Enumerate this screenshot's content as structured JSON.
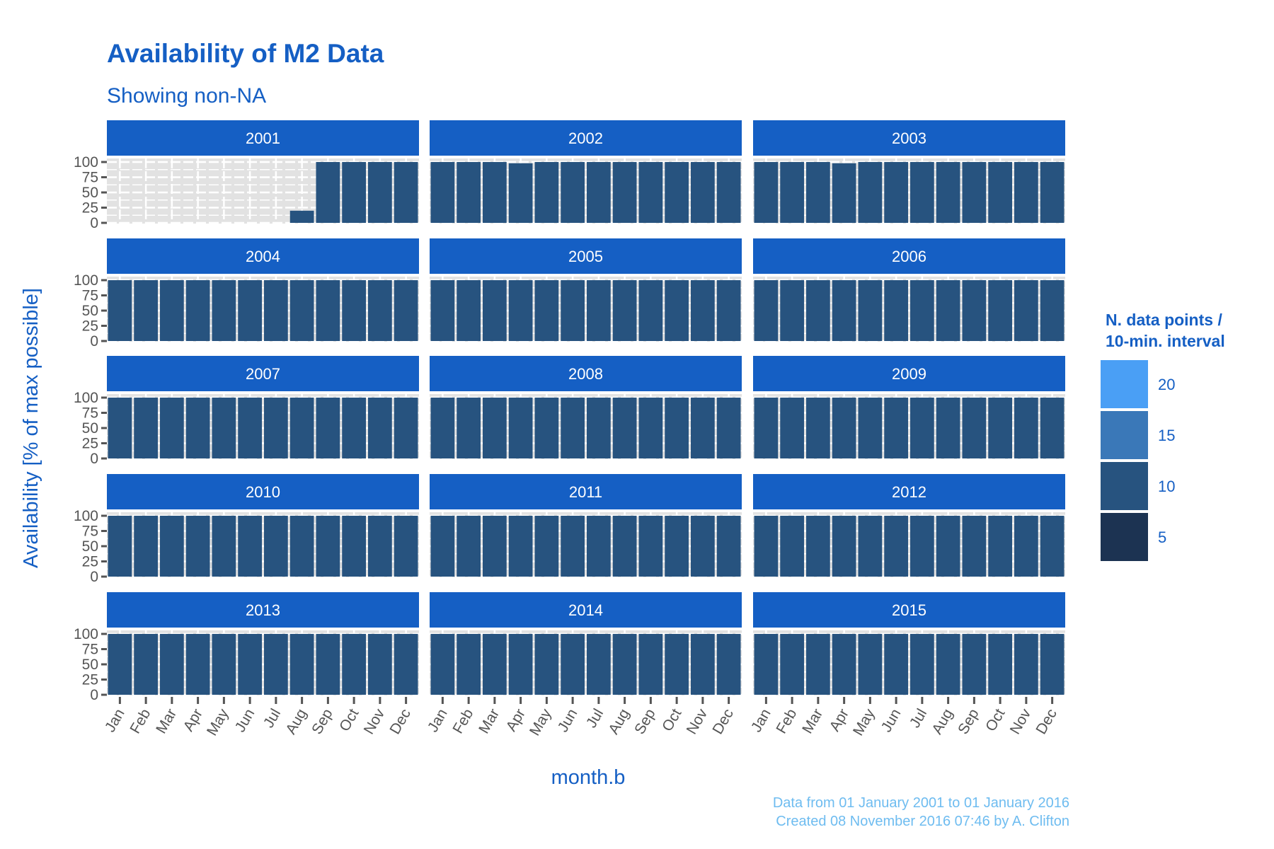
{
  "chart_data": {
    "type": "bar",
    "title": "Availability of M2 Data",
    "subtitle": "Showing non-NA",
    "xlabel": "month.b",
    "ylabel": "Availability [% of max possible]",
    "ylim": [
      0,
      100
    ],
    "yticks": [
      "0",
      "25",
      "50",
      "75",
      "100"
    ],
    "categories": [
      "Jan",
      "Feb",
      "Mar",
      "Apr",
      "May",
      "Jun",
      "Jul",
      "Aug",
      "Sep",
      "Oct",
      "Nov",
      "Dec"
    ],
    "facets": [
      {
        "year": "2001",
        "values": [
          null,
          null,
          null,
          null,
          null,
          null,
          null,
          20,
          100,
          100,
          100,
          100
        ],
        "points": [
          10,
          10,
          10,
          10,
          10,
          10,
          10,
          10,
          10,
          10,
          10,
          10
        ]
      },
      {
        "year": "2002",
        "values": [
          100,
          100,
          100,
          98,
          100,
          100,
          100,
          100,
          100,
          100,
          100,
          100
        ],
        "points": [
          10,
          10,
          10,
          10,
          10,
          10,
          10,
          10,
          10,
          10,
          10,
          10
        ]
      },
      {
        "year": "2003",
        "values": [
          100,
          100,
          100,
          98,
          100,
          100,
          100,
          100,
          100,
          100,
          100,
          100
        ],
        "points": [
          10,
          10,
          10,
          10,
          10,
          10,
          10,
          10,
          10,
          10,
          10,
          10
        ]
      },
      {
        "year": "2004",
        "values": [
          100,
          100,
          100,
          100,
          100,
          100,
          100,
          100,
          100,
          100,
          100,
          100
        ],
        "points": [
          10,
          10,
          10,
          10,
          10,
          10,
          10,
          10,
          10,
          10,
          10,
          10
        ]
      },
      {
        "year": "2005",
        "values": [
          100,
          100,
          100,
          100,
          100,
          100,
          100,
          100,
          100,
          100,
          100,
          100
        ],
        "points": [
          10,
          10,
          10,
          10,
          10,
          10,
          10,
          10,
          10,
          10,
          10,
          10
        ]
      },
      {
        "year": "2006",
        "values": [
          100,
          100,
          100,
          100,
          100,
          100,
          100,
          100,
          100,
          100,
          100,
          100
        ],
        "points": [
          10,
          10,
          10,
          10,
          10,
          10,
          10,
          10,
          10,
          10,
          10,
          10
        ]
      },
      {
        "year": "2007",
        "values": [
          100,
          100,
          100,
          100,
          100,
          100,
          100,
          100,
          100,
          100,
          100,
          100
        ],
        "points": [
          10,
          10,
          10,
          10,
          10,
          10,
          10,
          10,
          10,
          10,
          10,
          10
        ]
      },
      {
        "year": "2008",
        "values": [
          100,
          100,
          100,
          100,
          100,
          100,
          100,
          100,
          100,
          100,
          100,
          100
        ],
        "points": [
          10,
          10,
          10,
          10,
          10,
          10,
          10,
          10,
          10,
          10,
          10,
          10
        ]
      },
      {
        "year": "2009",
        "values": [
          100,
          100,
          100,
          100,
          100,
          100,
          100,
          100,
          100,
          100,
          100,
          100
        ],
        "points": [
          10,
          10,
          10,
          10,
          10,
          10,
          10,
          10,
          10,
          10,
          10,
          10
        ]
      },
      {
        "year": "2010",
        "values": [
          100,
          100,
          100,
          100,
          100,
          100,
          100,
          100,
          100,
          100,
          100,
          100
        ],
        "points": [
          10,
          10,
          10,
          10,
          10,
          10,
          10,
          10,
          10,
          10,
          10,
          10
        ]
      },
      {
        "year": "2011",
        "values": [
          100,
          100,
          100,
          100,
          100,
          100,
          100,
          100,
          100,
          100,
          100,
          100
        ],
        "points": [
          10,
          10,
          10,
          10,
          10,
          10,
          10,
          10,
          10,
          10,
          10,
          10
        ]
      },
      {
        "year": "2012",
        "values": [
          100,
          100,
          100,
          100,
          100,
          100,
          100,
          100,
          100,
          100,
          100,
          100
        ],
        "points": [
          10,
          10,
          10,
          10,
          10,
          10,
          10,
          10,
          10,
          10,
          10,
          10
        ]
      },
      {
        "year": "2013",
        "values": [
          100,
          100,
          100,
          100,
          100,
          100,
          100,
          100,
          100,
          100,
          100,
          100
        ],
        "points": [
          10,
          10,
          10,
          10,
          10,
          10,
          10,
          10,
          10,
          10,
          10,
          10
        ]
      },
      {
        "year": "2014",
        "values": [
          100,
          100,
          100,
          100,
          100,
          100,
          100,
          100,
          100,
          100,
          100,
          100
        ],
        "points": [
          10,
          10,
          10,
          10,
          10,
          10,
          10,
          10,
          10,
          10,
          10,
          10
        ]
      },
      {
        "year": "2015",
        "values": [
          100,
          100,
          100,
          100,
          100,
          100,
          100,
          100,
          100,
          100,
          100,
          100
        ],
        "points": [
          10,
          10,
          10,
          10,
          10,
          10,
          10,
          10,
          10,
          10,
          10,
          10
        ]
      }
    ],
    "legend": {
      "title_line1": "N. data points /",
      "title_line2": "10-min. interval",
      "placement": "right",
      "items": [
        {
          "label": "20",
          "color": "#4a9ff5"
        },
        {
          "label": "15",
          "color": "#3a78b8"
        },
        {
          "label": "10",
          "color": "#27537f"
        },
        {
          "label": "5",
          "color": "#1c3352"
        }
      ]
    },
    "grid": true,
    "caption_line1": "Data from 01 January 2001 to 01 January 2016",
    "caption_line2": "Created 08 November 2016 07:46 by A. Clifton"
  },
  "colors": {
    "accent": "#155fc4",
    "bar": "#27537f",
    "panel_bg": "#e2e2e2",
    "caption": "#6ebcf0",
    "tick_text": "#555555"
  }
}
